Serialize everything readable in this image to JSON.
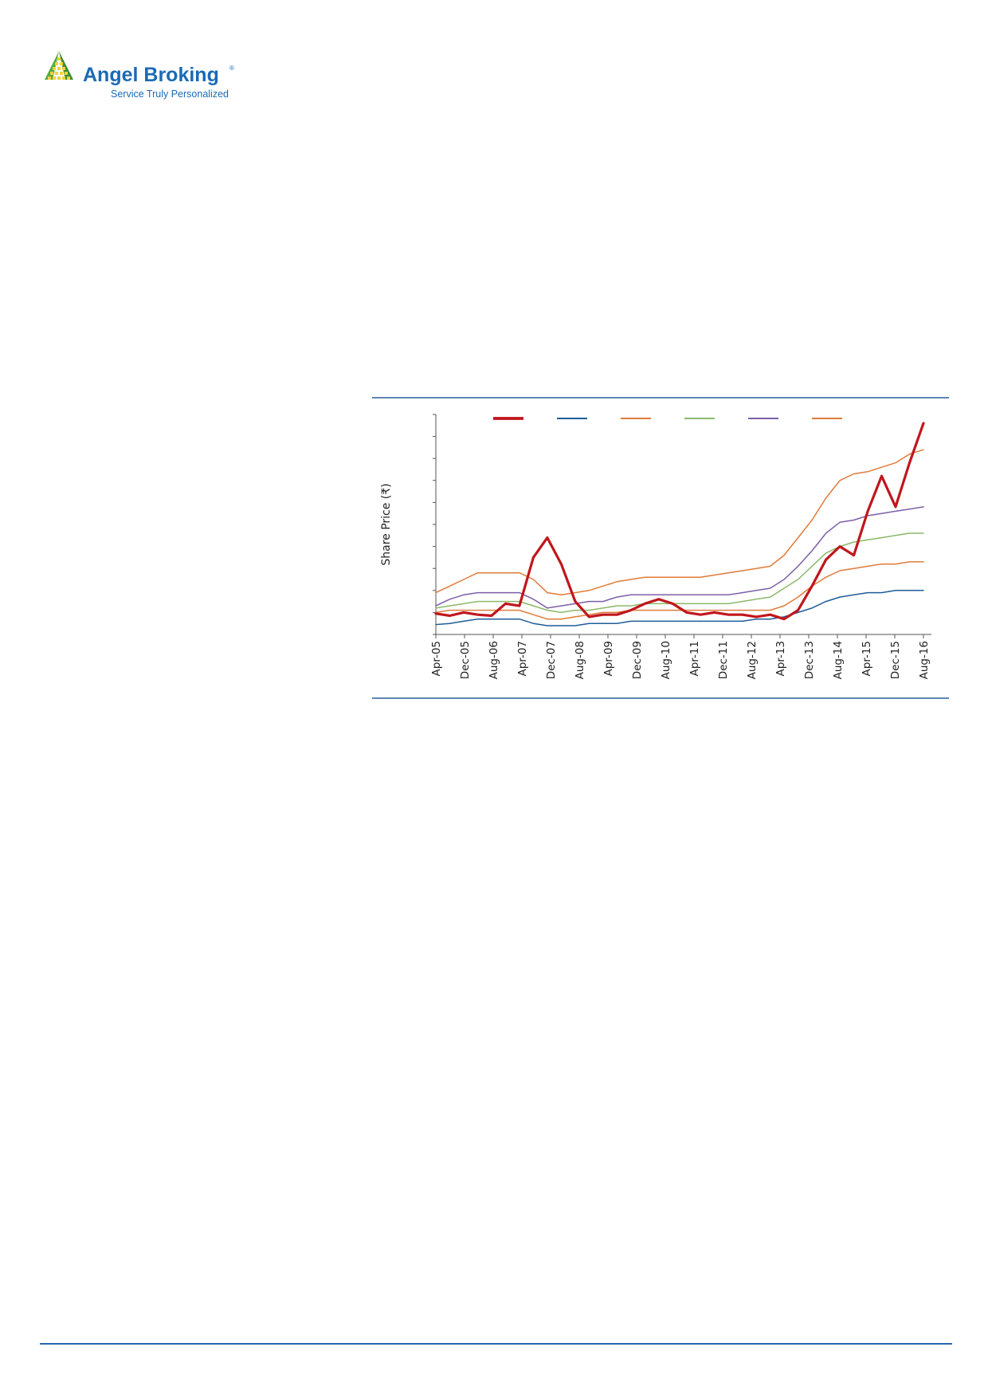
{
  "brand": {
    "name": "Angel Broking",
    "registered": "®",
    "tagline": "Service Truly Personalized",
    "colors": {
      "blue": "#1b6ab5",
      "yellow": "#f2d13c",
      "green": "#4fae3f"
    }
  },
  "chart_data": {
    "type": "line",
    "title": "",
    "xlabel": "",
    "ylabel": "Share Price (₹)",
    "grid": false,
    "legend": "top",
    "x_ticks": [
      "Apr-05",
      "Dec-05",
      "Aug-06",
      "Apr-07",
      "Dec-07",
      "Aug-08",
      "Apr-09",
      "Dec-09",
      "Aug-10",
      "Apr-11",
      "Dec-11",
      "Aug-12",
      "Apr-13",
      "Dec-13",
      "Aug-14",
      "Apr-15",
      "Dec-15",
      "Aug-16"
    ],
    "y_range_relative": [
      0,
      100
    ],
    "y_tick_count": 11,
    "note_values": "values are relative (0-100 of plot height); the original prints no y-axis numbers",
    "x": [
      "Apr-05",
      "Aug-05",
      "Dec-05",
      "Apr-06",
      "Aug-06",
      "Dec-06",
      "Apr-07",
      "Aug-07",
      "Dec-07",
      "Apr-08",
      "Aug-08",
      "Dec-08",
      "Apr-09",
      "Aug-09",
      "Dec-09",
      "Apr-10",
      "Aug-10",
      "Dec-10",
      "Apr-11",
      "Aug-11",
      "Dec-11",
      "Apr-12",
      "Aug-12",
      "Dec-12",
      "Apr-13",
      "Aug-13",
      "Dec-13",
      "Apr-14",
      "Aug-14",
      "Dec-14",
      "Apr-15",
      "Aug-15",
      "Dec-15",
      "Apr-16",
      "Aug-16",
      "Oct-16"
    ],
    "series": [
      {
        "color": "#c0161c",
        "width": 3.2,
        "values": [
          9.5,
          8.5,
          10,
          9,
          8.5,
          14,
          13,
          35,
          44,
          32,
          15,
          8,
          9,
          9,
          11,
          14,
          16,
          14,
          10,
          9,
          10,
          9,
          9,
          8,
          9,
          7,
          11,
          22,
          34,
          40,
          36,
          56,
          72,
          58,
          78,
          96
        ]
      },
      {
        "color": "#1f5c9a",
        "width": 1.5,
        "values": [
          4.5,
          5,
          6,
          7,
          7,
          7,
          7,
          5,
          4,
          4,
          4,
          5,
          5,
          5,
          6,
          6,
          6,
          6,
          6,
          6,
          6,
          6,
          6,
          7,
          7,
          8,
          10,
          12,
          15,
          17,
          18,
          19,
          19,
          20,
          20,
          20
        ]
      },
      {
        "color": "#e07b39",
        "width": 1.5,
        "values": [
          10,
          11,
          11,
          11,
          11,
          11,
          11,
          9,
          7,
          7,
          8,
          9,
          10,
          10,
          11,
          11,
          11,
          11,
          11,
          11,
          11,
          11,
          11,
          11,
          11,
          13,
          17,
          22,
          26,
          29,
          30,
          31,
          32,
          32,
          33,
          33
        ]
      },
      {
        "color": "#8cb86a",
        "width": 1.5,
        "values": [
          12,
          13,
          14,
          15,
          15,
          15,
          15,
          13,
          11,
          10,
          11,
          11,
          12,
          13,
          13,
          14,
          14,
          14,
          14,
          14,
          14,
          14,
          15,
          16,
          17,
          21,
          25,
          31,
          37,
          40,
          42,
          43,
          44,
          45,
          46,
          46
        ]
      },
      {
        "color": "#7d5fa8",
        "width": 1.5,
        "values": [
          13,
          16,
          18,
          19,
          19,
          19,
          19,
          16,
          12,
          13,
          14,
          15,
          15,
          17,
          18,
          18,
          18,
          18,
          18,
          18,
          18,
          18,
          19,
          20,
          21,
          25,
          31,
          38,
          46,
          51,
          52,
          54,
          55,
          56,
          57,
          58
        ]
      },
      {
        "color": "#e07b39",
        "width": 1.5,
        "values": [
          19,
          22,
          25,
          28,
          28,
          28,
          28,
          25,
          19,
          18,
          19,
          20,
          22,
          24,
          25,
          26,
          26,
          26,
          26,
          26,
          27,
          28,
          29,
          30,
          31,
          36,
          44,
          52,
          62,
          70,
          73,
          74,
          76,
          78,
          82,
          84
        ]
      }
    ]
  }
}
